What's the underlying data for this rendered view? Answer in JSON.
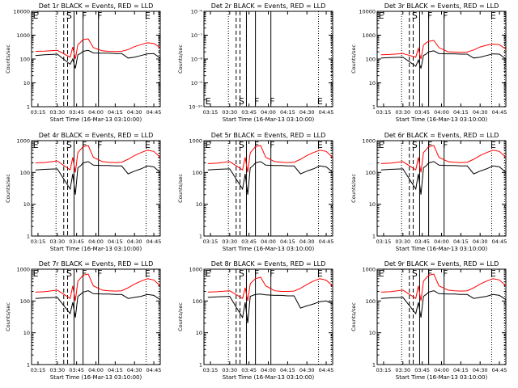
{
  "legend_colors": {
    "events": "#000000",
    "lld": "#ff0000"
  },
  "chart_data": [
    {
      "type": "line",
      "title": "Det 1r BLACK = Events, RED = LLD",
      "xlabel": "Start Time (16-Mar-13 03:10:00)",
      "ylabel": "Counts/sec",
      "x_ticks": [
        "03:15",
        "03:30",
        "03:45",
        "04:00",
        "04:15",
        "04:30",
        "04:45"
      ],
      "yscale": "log",
      "ylim": [
        1,
        10000
      ],
      "y_ticks": [
        "1",
        "10",
        "100",
        "1000",
        "10000"
      ],
      "markers": [
        "E",
        "S",
        "F",
        "F",
        "E"
      ],
      "series": [
        {
          "name": "Events",
          "x_min": [
            3,
            10,
            20,
            30,
            32,
            34,
            36,
            38,
            40,
            44,
            48,
            55,
            60,
            65,
            70,
            75,
            80,
            85,
            90,
            95,
            100
          ],
          "values": [
            140,
            150,
            160,
            60,
            100,
            40,
            150,
            170,
            210,
            230,
            180,
            175,
            175,
            170,
            170,
            110,
            120,
            140,
            165,
            170,
            110
          ]
        },
        {
          "name": "LLD",
          "x_min": [
            3,
            10,
            20,
            30,
            32,
            34,
            36,
            38,
            40,
            44,
            48,
            55,
            60,
            65,
            70,
            75,
            80,
            85,
            90,
            95,
            100
          ],
          "values": [
            210,
            215,
            230,
            120,
            320,
            100,
            400,
            500,
            650,
            700,
            300,
            220,
            210,
            205,
            210,
            250,
            330,
            400,
            480,
            450,
            300
          ]
        }
      ]
    },
    {
      "type": "line",
      "title": "Det 2r BLACK = Events, RED = LLD",
      "xlabel": "Start Time (16-Mar-13 03:10:00)",
      "ylabel": "Counts/sec",
      "x_ticks": [
        "03:15",
        "03:30",
        "03:45",
        "04:00",
        "04:15",
        "04:30",
        "04:45"
      ],
      "yscale": "log",
      "ylim": [
        1e-10,
        1e-06
      ],
      "y_ticks": [
        "10⁻¹⁰",
        "10⁻⁹",
        "10⁻⁸",
        "10⁻⁷",
        "10⁻⁶"
      ],
      "markers": [
        "E",
        "S",
        "F",
        "F",
        "E"
      ],
      "series": []
    },
    {
      "type": "line",
      "title": "Det 3r BLACK = Events, RED = LLD",
      "xlabel": "Start Time (16-Mar-13 03:10:00)",
      "ylabel": "Counts/sec",
      "x_ticks": [
        "03:15",
        "03:30",
        "03:45",
        "04:00",
        "04:15",
        "04:30",
        "04:45"
      ],
      "yscale": "log",
      "ylim": [
        1,
        10000
      ],
      "y_ticks": [
        "1",
        "10",
        "100",
        "1000",
        "10000"
      ],
      "markers": [
        "E",
        "S",
        "F",
        "F",
        "E"
      ],
      "series": [
        {
          "name": "Events",
          "x_min": [
            3,
            10,
            20,
            30,
            32,
            34,
            36,
            38,
            40,
            44,
            48,
            55,
            60,
            65,
            70,
            75,
            80,
            85,
            90,
            95,
            100
          ],
          "values": [
            110,
            115,
            120,
            50,
            90,
            40,
            140,
            160,
            200,
            220,
            170,
            165,
            165,
            160,
            160,
            110,
            120,
            140,
            165,
            160,
            100
          ]
        },
        {
          "name": "LLD",
          "x_min": [
            3,
            10,
            20,
            30,
            32,
            34,
            36,
            38,
            40,
            44,
            48,
            55,
            60,
            65,
            70,
            75,
            80,
            85,
            90,
            95,
            100
          ],
          "values": [
            150,
            155,
            170,
            120,
            280,
            100,
            380,
            480,
            550,
            600,
            300,
            200,
            195,
            190,
            195,
            240,
            320,
            380,
            420,
            400,
            260
          ]
        }
      ]
    },
    {
      "type": "line",
      "title": "Det 4r BLACK = Events, RED = LLD",
      "xlabel": "Start Time (16-Mar-13 03:10:00)",
      "ylabel": "Counts/sec",
      "x_ticks": [
        "03:15",
        "03:30",
        "03:45",
        "04:00",
        "04:15",
        "04:30",
        "04:45"
      ],
      "yscale": "log",
      "ylim": [
        1,
        1000
      ],
      "y_ticks": [
        "1",
        "10",
        "100",
        "1000"
      ],
      "markers": [
        "E",
        "S",
        "F",
        "F",
        "E"
      ],
      "series": [
        {
          "name": "Events",
          "x_min": [
            3,
            10,
            20,
            30,
            32,
            34,
            36,
            38,
            40,
            44,
            48,
            55,
            60,
            65,
            70,
            75,
            80,
            85,
            90,
            95,
            100
          ],
          "values": [
            120,
            125,
            130,
            30,
            90,
            20,
            140,
            160,
            200,
            220,
            170,
            165,
            165,
            160,
            160,
            90,
            110,
            130,
            160,
            150,
            100
          ]
        },
        {
          "name": "LLD",
          "x_min": [
            3,
            10,
            20,
            30,
            32,
            34,
            36,
            38,
            40,
            44,
            48,
            55,
            60,
            65,
            70,
            75,
            80,
            85,
            90,
            95,
            100
          ],
          "values": [
            200,
            205,
            230,
            120,
            300,
            100,
            420,
            520,
            650,
            700,
            300,
            220,
            210,
            205,
            210,
            260,
            340,
            420,
            500,
            460,
            300
          ]
        }
      ]
    },
    {
      "type": "line",
      "title": "Det 5r BLACK = Events, RED = LLD",
      "xlabel": "Start Time (16-Mar-13 03:10:00)",
      "ylabel": "Counts/sec",
      "x_ticks": [
        "03:15",
        "03:30",
        "03:45",
        "04:00",
        "04:15",
        "04:30",
        "04:45"
      ],
      "yscale": "log",
      "ylim": [
        1,
        1000
      ],
      "y_ticks": [
        "1",
        "10",
        "100",
        "1000"
      ],
      "markers": [
        "E",
        "S",
        "F",
        "F",
        "E"
      ],
      "series": [
        {
          "name": "Events",
          "x_min": [
            3,
            10,
            20,
            30,
            32,
            34,
            36,
            38,
            40,
            44,
            48,
            55,
            60,
            65,
            70,
            75,
            80,
            85,
            90,
            95,
            100
          ],
          "values": [
            120,
            125,
            130,
            30,
            90,
            20,
            140,
            160,
            200,
            220,
            170,
            165,
            165,
            160,
            160,
            90,
            110,
            130,
            160,
            150,
            100
          ]
        },
        {
          "name": "LLD",
          "x_min": [
            3,
            10,
            20,
            30,
            32,
            34,
            36,
            38,
            40,
            44,
            48,
            55,
            60,
            65,
            70,
            75,
            80,
            85,
            90,
            95,
            100
          ],
          "values": [
            190,
            195,
            220,
            120,
            300,
            100,
            420,
            520,
            650,
            700,
            300,
            220,
            210,
            205,
            210,
            260,
            340,
            420,
            500,
            460,
            300
          ]
        }
      ]
    },
    {
      "type": "line",
      "title": "Det 6r BLACK = Events, RED = LLD",
      "xlabel": "Start Time (16-Mar-13 03:10:00)",
      "ylabel": "Counts/sec",
      "x_ticks": [
        "03:15",
        "03:30",
        "03:45",
        "04:00",
        "04:15",
        "04:30",
        "04:45"
      ],
      "yscale": "log",
      "ylim": [
        1,
        1000
      ],
      "y_ticks": [
        "1",
        "10",
        "100",
        "1000"
      ],
      "markers": [
        "E",
        "S",
        "F",
        "F",
        "E"
      ],
      "series": [
        {
          "name": "Events",
          "x_min": [
            3,
            10,
            20,
            30,
            32,
            34,
            36,
            38,
            40,
            44,
            48,
            55,
            60,
            65,
            70,
            75,
            80,
            85,
            90,
            95,
            100
          ],
          "values": [
            120,
            125,
            130,
            30,
            90,
            20,
            140,
            160,
            200,
            220,
            170,
            165,
            165,
            160,
            160,
            90,
            110,
            130,
            160,
            150,
            100
          ]
        },
        {
          "name": "LLD",
          "x_min": [
            3,
            10,
            20,
            30,
            32,
            34,
            36,
            38,
            40,
            44,
            48,
            55,
            60,
            65,
            70,
            75,
            80,
            85,
            90,
            95,
            100
          ],
          "values": [
            190,
            195,
            220,
            120,
            300,
            100,
            420,
            520,
            650,
            700,
            300,
            220,
            210,
            205,
            210,
            260,
            340,
            420,
            500,
            460,
            300
          ]
        }
      ]
    },
    {
      "type": "line",
      "title": "Det 7r BLACK = Events, RED = LLD",
      "xlabel": "Start Time (16-Mar-13 03:10:00)",
      "ylabel": "Counts/sec",
      "x_ticks": [
        "03:15",
        "03:30",
        "03:45",
        "04:00",
        "04:15",
        "04:30",
        "04:45"
      ],
      "yscale": "log",
      "ylim": [
        1,
        1000
      ],
      "y_ticks": [
        "1",
        "10",
        "100",
        "1000"
      ],
      "markers": [
        "E",
        "S",
        "F",
        "F",
        "E"
      ],
      "series": [
        {
          "name": "Events",
          "x_min": [
            3,
            10,
            20,
            30,
            32,
            34,
            36,
            38,
            40,
            44,
            48,
            55,
            60,
            65,
            70,
            75,
            80,
            85,
            90,
            95,
            100
          ],
          "values": [
            120,
            125,
            130,
            40,
            90,
            30,
            140,
            160,
            190,
            210,
            170,
            165,
            165,
            160,
            160,
            120,
            130,
            140,
            160,
            150,
            110
          ]
        },
        {
          "name": "LLD",
          "x_min": [
            3,
            10,
            20,
            30,
            32,
            34,
            36,
            38,
            40,
            44,
            48,
            55,
            60,
            65,
            70,
            75,
            80,
            85,
            90,
            95,
            100
          ],
          "values": [
            190,
            195,
            220,
            120,
            300,
            100,
            420,
            520,
            650,
            700,
            300,
            220,
            210,
            205,
            210,
            260,
            340,
            420,
            500,
            460,
            300
          ]
        }
      ]
    },
    {
      "type": "line",
      "title": "Det 8r BLACK = Events, RED = LLD",
      "xlabel": "Start Time (16-Mar-13 03:10:00)",
      "ylabel": "Counts/sec",
      "x_ticks": [
        "03:15",
        "03:30",
        "03:45",
        "04:00",
        "04:15",
        "04:30",
        "04:45"
      ],
      "yscale": "log",
      "ylim": [
        1,
        1000
      ],
      "y_ticks": [
        "1",
        "10",
        "100",
        "1000"
      ],
      "markers": [
        "E",
        "S",
        "F",
        "F",
        "E"
      ],
      "series": [
        {
          "name": "Events",
          "x_min": [
            3,
            10,
            20,
            30,
            32,
            34,
            36,
            38,
            40,
            44,
            48,
            55,
            60,
            65,
            70,
            75,
            80,
            85,
            90,
            95,
            100
          ],
          "values": [
            130,
            135,
            140,
            30,
            90,
            20,
            140,
            150,
            160,
            165,
            155,
            150,
            150,
            145,
            145,
            60,
            70,
            80,
            95,
            100,
            80
          ]
        },
        {
          "name": "LLD",
          "x_min": [
            3,
            10,
            20,
            30,
            32,
            34,
            36,
            38,
            40,
            44,
            48,
            55,
            60,
            65,
            70,
            75,
            80,
            85,
            90,
            95,
            100
          ],
          "values": [
            190,
            195,
            210,
            120,
            260,
            100,
            350,
            420,
            500,
            560,
            300,
            210,
            200,
            200,
            205,
            250,
            330,
            420,
            500,
            450,
            300
          ]
        }
      ]
    },
    {
      "type": "line",
      "title": "Det 9r BLACK = Events, RED = LLD",
      "xlabel": "Start Time (16-Mar-13 03:10:00)",
      "ylabel": "Counts/sec",
      "x_ticks": [
        "03:15",
        "03:30",
        "03:45",
        "04:00",
        "04:15",
        "04:30",
        "04:45"
      ],
      "yscale": "log",
      "ylim": [
        1,
        1000
      ],
      "y_ticks": [
        "1",
        "10",
        "100",
        "1000"
      ],
      "markers": [
        "E",
        "S",
        "F",
        "F",
        "E"
      ],
      "series": [
        {
          "name": "Events",
          "x_min": [
            3,
            10,
            20,
            30,
            32,
            34,
            36,
            38,
            40,
            44,
            48,
            55,
            60,
            65,
            70,
            75,
            80,
            85,
            90,
            95,
            100
          ],
          "values": [
            120,
            125,
            130,
            40,
            90,
            30,
            140,
            160,
            190,
            210,
            170,
            165,
            165,
            160,
            160,
            120,
            130,
            140,
            160,
            150,
            110
          ]
        },
        {
          "name": "LLD",
          "x_min": [
            3,
            10,
            20,
            30,
            32,
            34,
            36,
            38,
            40,
            44,
            48,
            55,
            60,
            65,
            70,
            75,
            80,
            85,
            90,
            95,
            100
          ],
          "values": [
            190,
            195,
            220,
            120,
            300,
            100,
            420,
            520,
            650,
            700,
            300,
            220,
            210,
            205,
            210,
            260,
            340,
            420,
            500,
            460,
            300
          ]
        }
      ]
    }
  ]
}
